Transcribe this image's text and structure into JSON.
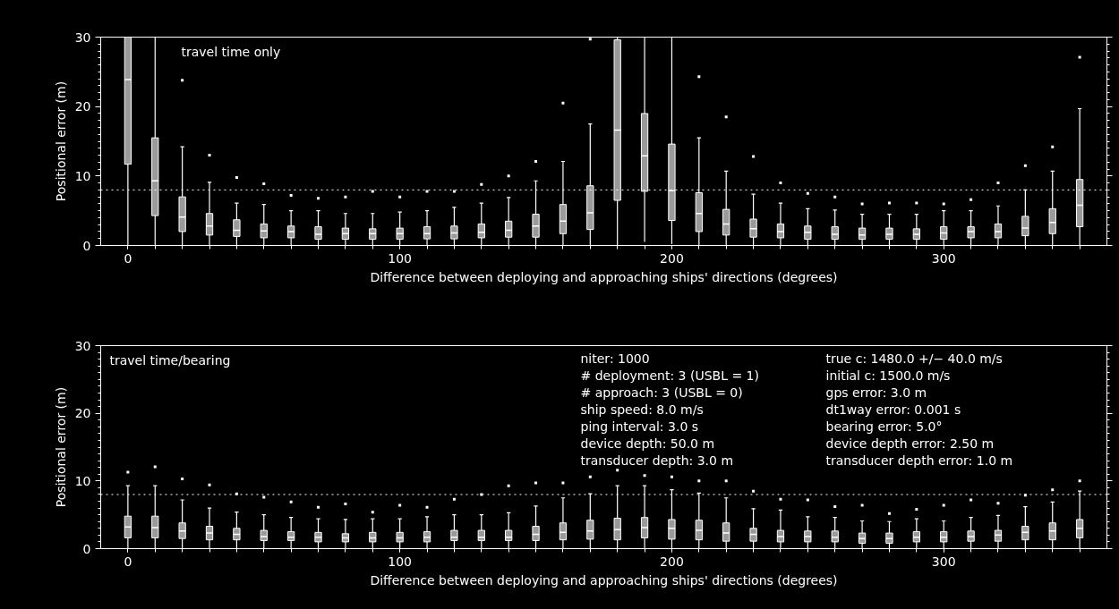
{
  "chart_data": [
    {
      "type": "box",
      "xlabel": "Difference between deploying and approaching ships' directions (degrees)",
      "ylabel": "Positional error (m)",
      "annotations": [
        "travel time only"
      ],
      "x": [
        0,
        10,
        20,
        30,
        40,
        50,
        60,
        70,
        80,
        90,
        100,
        110,
        120,
        130,
        140,
        150,
        160,
        170,
        180,
        190,
        200,
        210,
        220,
        230,
        240,
        250,
        260,
        270,
        280,
        290,
        300,
        310,
        320,
        330,
        340,
        350
      ],
      "xlim": [
        -10,
        360
      ],
      "xticks": [
        0,
        100,
        200,
        300
      ],
      "ylim": [
        0,
        30
      ],
      "yticks": [
        0,
        10,
        20,
        30
      ],
      "ref_lines": [
        {
          "axis": "y",
          "value": 8,
          "color": "#ffffff",
          "line_style": "dotted"
        }
      ],
      "series": [
        {
          "color": "#9a9a9a",
          "boxes": [
            {
              "low": 0,
              "q1": 11.7,
              "median": 23.9,
              "q3": 30,
              "high": 30
            },
            {
              "low": 0,
              "q1": 4.3,
              "median": 9.3,
              "q3": 15.5,
              "high": 30
            },
            {
              "low": 0,
              "q1": 2.0,
              "median": 4.1,
              "q3": 7.0,
              "high": 14.2,
              "outliers": [
                23.8
              ]
            },
            {
              "low": 0,
              "q1": 1.5,
              "median": 2.8,
              "q3": 4.6,
              "high": 9.1,
              "outliers": [
                13
              ]
            },
            {
              "low": 0,
              "q1": 1.3,
              "median": 2.2,
              "q3": 3.7,
              "high": 6.1,
              "outliers": [
                9.8
              ]
            },
            {
              "low": 0,
              "q1": 1.1,
              "median": 2.1,
              "q3": 3.1,
              "high": 5.9,
              "outliers": [
                8.9
              ]
            },
            {
              "low": 0,
              "q1": 1.1,
              "median": 2.0,
              "q3": 2.8,
              "high": 5.0,
              "outliers": [
                7.2
              ]
            },
            {
              "low": 0,
              "q1": 0.9,
              "median": 1.6,
              "q3": 2.7,
              "high": 5.0,
              "outliers": [
                6.8
              ]
            },
            {
              "low": 0,
              "q1": 0.9,
              "median": 1.7,
              "q3": 2.5,
              "high": 4.6,
              "outliers": [
                7.0
              ]
            },
            {
              "low": 0,
              "q1": 0.9,
              "median": 1.7,
              "q3": 2.4,
              "high": 4.6,
              "outliers": [
                7.8
              ]
            },
            {
              "low": 0,
              "q1": 0.9,
              "median": 1.7,
              "q3": 2.5,
              "high": 4.8,
              "outliers": [
                7.0
              ]
            },
            {
              "low": 0,
              "q1": 0.95,
              "median": 1.7,
              "q3": 2.7,
              "high": 5.0,
              "outliers": [
                7.8
              ]
            },
            {
              "low": 0,
              "q1": 0.95,
              "median": 1.8,
              "q3": 2.8,
              "high": 5.5,
              "outliers": [
                7.8
              ]
            },
            {
              "low": 0,
              "q1": 1.1,
              "median": 1.9,
              "q3": 3.1,
              "high": 6.1,
              "outliers": [
                8.8
              ]
            },
            {
              "low": 0,
              "q1": 1.2,
              "median": 2.2,
              "q3": 3.5,
              "high": 6.9,
              "outliers": [
                10
              ]
            },
            {
              "low": 0,
              "q1": 1.2,
              "median": 2.8,
              "q3": 4.5,
              "high": 9.3,
              "outliers": [
                12.1
              ]
            },
            {
              "low": 0,
              "q1": 1.7,
              "median": 3.5,
              "q3": 5.9,
              "high": 12.1,
              "outliers": [
                20.5
              ]
            },
            {
              "low": 0,
              "q1": 2.3,
              "median": 4.7,
              "q3": 8.6,
              "high": 17.5,
              "outliers": [
                29.7
              ]
            },
            {
              "low": 0,
              "q1": 6.5,
              "median": 16.6,
              "q3": 29.6,
              "high": 30
            },
            {
              "low": 0.5,
              "q1": 7.8,
              "median": 12.9,
              "q3": 19,
              "high": 30
            },
            {
              "low": 0.2,
              "q1": 3.6,
              "median": 7.9,
              "q3": 14.6,
              "high": 30
            },
            {
              "low": 0,
              "q1": 2.0,
              "median": 4.6,
              "q3": 7.6,
              "high": 15.5,
              "outliers": [
                24.3
              ]
            },
            {
              "low": 0,
              "q1": 1.5,
              "median": 3.1,
              "q3": 5.2,
              "high": 10.7,
              "outliers": [
                18.5
              ]
            },
            {
              "low": 0,
              "q1": 1.2,
              "median": 2.4,
              "q3": 3.8,
              "high": 7.4,
              "outliers": [
                12.8
              ]
            },
            {
              "low": 0,
              "q1": 1.1,
              "median": 2.0,
              "q3": 3.1,
              "high": 6.1,
              "outliers": [
                9
              ]
            },
            {
              "low": 0,
              "q1": 0.9,
              "median": 1.9,
              "q3": 2.8,
              "high": 5.3,
              "outliers": [
                7.5
              ]
            },
            {
              "low": 0,
              "q1": 0.9,
              "median": 1.6,
              "q3": 2.7,
              "high": 5.1,
              "outliers": [
                7
              ]
            },
            {
              "low": 0,
              "q1": 0.9,
              "median": 1.5,
              "q3": 2.5,
              "high": 4.5,
              "outliers": [
                6
              ]
            },
            {
              "low": 0,
              "q1": 0.9,
              "median": 1.6,
              "q3": 2.5,
              "high": 4.5,
              "outliers": [
                6.1
              ]
            },
            {
              "low": 0,
              "q1": 0.9,
              "median": 1.6,
              "q3": 2.4,
              "high": 4.5,
              "outliers": [
                6.1
              ]
            },
            {
              "low": 0,
              "q1": 0.9,
              "median": 1.8,
              "q3": 2.7,
              "high": 5.0,
              "outliers": [
                6
              ]
            },
            {
              "low": 0,
              "q1": 1.1,
              "median": 2.0,
              "q3": 2.7,
              "high": 5.0,
              "outliers": [
                6.6
              ]
            },
            {
              "low": 0,
              "q1": 1.1,
              "median": 2.0,
              "q3": 3.1,
              "high": 5.7,
              "outliers": [
                9
              ]
            },
            {
              "low": 0,
              "q1": 1.4,
              "median": 2.5,
              "q3": 4.2,
              "high": 8.0,
              "outliers": [
                11.5
              ]
            },
            {
              "low": 0,
              "q1": 1.7,
              "median": 3.3,
              "q3": 5.3,
              "high": 10.7,
              "outliers": [
                14.2
              ]
            },
            {
              "low": 0,
              "q1": 2.7,
              "median": 5.8,
              "q3": 9.5,
              "high": 19.7,
              "outliers": [
                27.1
              ]
            }
          ]
        }
      ]
    },
    {
      "type": "box",
      "xlabel": "Difference between deploying and approaching ships' directions (degrees)",
      "ylabel": "Positional error (m)",
      "annotations": [
        "travel time/bearing",
        "niter: 1000",
        "# deployment: 3 (USBL = 1)",
        "# approach: 3 (USBL = 0)",
        "ship speed: 8.0 m/s",
        "ping interval: 3.0 s",
        "device depth: 50.0 m",
        "transducer depth: 3.0 m",
        "true c: 1480.0 +/− 40.0 m/s",
        "initial c: 1500.0 m/s",
        "gps error: 3.0 m",
        "dt1way error: 0.001 s",
        "bearing error: 5.0°",
        "device depth error: 2.50 m",
        "transducer depth error: 1.0 m"
      ],
      "x": [
        0,
        10,
        20,
        30,
        40,
        50,
        60,
        70,
        80,
        90,
        100,
        110,
        120,
        130,
        140,
        150,
        160,
        170,
        180,
        190,
        200,
        210,
        220,
        230,
        240,
        250,
        260,
        270,
        280,
        290,
        300,
        310,
        320,
        330,
        340,
        350
      ],
      "xlim": [
        -10,
        360
      ],
      "xticks": [
        0,
        100,
        200,
        300
      ],
      "ylim": [
        0,
        30
      ],
      "yticks": [
        0,
        10,
        20,
        30
      ],
      "ref_lines": [
        {
          "axis": "y",
          "value": 8,
          "color": "#ffffff",
          "line_style": "dotted"
        }
      ],
      "series": [
        {
          "color": "#9a9a9a",
          "boxes": [
            {
              "low": 0,
              "q1": 1.6,
              "median": 3.2,
              "q3": 4.8,
              "high": 9.3,
              "outliers": [
                11.3
              ]
            },
            {
              "low": 0,
              "q1": 1.6,
              "median": 3.1,
              "q3": 4.8,
              "high": 9.3,
              "outliers": [
                12.1
              ]
            },
            {
              "low": 0,
              "q1": 1.5,
              "median": 2.6,
              "q3": 3.8,
              "high": 7.2,
              "outliers": [
                10.3
              ]
            },
            {
              "low": 0,
              "q1": 1.3,
              "median": 2.3,
              "q3": 3.3,
              "high": 6.0,
              "outliers": [
                9.4
              ]
            },
            {
              "low": 0,
              "q1": 1.3,
              "median": 2.1,
              "q3": 3.0,
              "high": 5.4,
              "outliers": [
                8.1
              ]
            },
            {
              "low": 0,
              "q1": 1.2,
              "median": 1.8,
              "q3": 2.7,
              "high": 5.0,
              "outliers": [
                7.6
              ]
            },
            {
              "low": 0,
              "q1": 1.2,
              "median": 1.7,
              "q3": 2.5,
              "high": 4.6,
              "outliers": [
                6.9
              ]
            },
            {
              "low": 0,
              "q1": 1.0,
              "median": 1.7,
              "q3": 2.4,
              "high": 4.4,
              "outliers": [
                6.1
              ]
            },
            {
              "low": 0,
              "q1": 1.0,
              "median": 1.6,
              "q3": 2.2,
              "high": 4.3,
              "outliers": [
                6.6
              ]
            },
            {
              "low": 0,
              "q1": 1.0,
              "median": 1.6,
              "q3": 2.4,
              "high": 4.4,
              "outliers": [
                5.4
              ]
            },
            {
              "low": 0,
              "q1": 1.0,
              "median": 1.6,
              "q3": 2.4,
              "high": 4.4,
              "outliers": [
                6.4
              ]
            },
            {
              "low": 0,
              "q1": 1.0,
              "median": 1.7,
              "q3": 2.5,
              "high": 4.7,
              "outliers": [
                6.1
              ]
            },
            {
              "low": 0,
              "q1": 1.2,
              "median": 1.7,
              "q3": 2.7,
              "high": 5.0,
              "outliers": [
                7.3
              ]
            },
            {
              "low": 0,
              "q1": 1.2,
              "median": 1.7,
              "q3": 2.7,
              "high": 5.0,
              "outliers": [
                8.0
              ]
            },
            {
              "low": 0,
              "q1": 1.2,
              "median": 1.7,
              "q3": 2.7,
              "high": 5.3,
              "outliers": [
                9.3
              ]
            },
            {
              "low": 0,
              "q1": 1.2,
              "median": 2.1,
              "q3": 3.3,
              "high": 6.3,
              "outliers": [
                9.7
              ]
            },
            {
              "low": 0,
              "q1": 1.3,
              "median": 2.4,
              "q3": 3.8,
              "high": 7.5,
              "outliers": [
                9.7
              ]
            },
            {
              "low": 0,
              "q1": 1.4,
              "median": 2.6,
              "q3": 4.2,
              "high": 8.1,
              "outliers": [
                10.6
              ]
            },
            {
              "low": 0,
              "q1": 1.3,
              "median": 2.8,
              "q3": 4.5,
              "high": 9.3,
              "outliers": [
                11.6
              ]
            },
            {
              "low": 0,
              "q1": 1.6,
              "median": 3.1,
              "q3": 4.6,
              "high": 9.3,
              "outliers": [
                10.8
              ]
            },
            {
              "low": 0,
              "q1": 1.4,
              "median": 3.0,
              "q3": 4.3,
              "high": 8.7,
              "outliers": [
                10.6
              ]
            },
            {
              "low": 0,
              "q1": 1.3,
              "median": 2.7,
              "q3": 4.2,
              "high": 8.2,
              "outliers": [
                10.0
              ]
            },
            {
              "low": 0,
              "q1": 1.1,
              "median": 2.3,
              "q3": 3.8,
              "high": 7.5,
              "outliers": [
                10.0
              ]
            },
            {
              "low": 0,
              "q1": 1.1,
              "median": 2.1,
              "q3": 3.0,
              "high": 5.9,
              "outliers": [
                8.5
              ]
            },
            {
              "low": 0,
              "q1": 1.0,
              "median": 1.8,
              "q3": 2.7,
              "high": 5.7,
              "outliers": [
                7.3
              ]
            },
            {
              "low": 0,
              "q1": 1.0,
              "median": 1.8,
              "q3": 2.6,
              "high": 4.7,
              "outliers": [
                7.2
              ]
            },
            {
              "low": 0,
              "q1": 1.0,
              "median": 1.7,
              "q3": 2.6,
              "high": 4.6,
              "outliers": [
                6.2
              ]
            },
            {
              "low": 0,
              "q1": 0.8,
              "median": 1.5,
              "q3": 2.3,
              "high": 4.1,
              "outliers": [
                6.4
              ]
            },
            {
              "low": 0,
              "q1": 0.8,
              "median": 1.5,
              "q3": 2.3,
              "high": 4.0,
              "outliers": [
                5.2
              ]
            },
            {
              "low": 0,
              "q1": 1.0,
              "median": 1.7,
              "q3": 2.5,
              "high": 4.4,
              "outliers": [
                5.8
              ]
            },
            {
              "low": 0,
              "q1": 1.0,
              "median": 1.7,
              "q3": 2.5,
              "high": 4.1,
              "outliers": [
                6.4
              ]
            },
            {
              "low": 0,
              "q1": 1.1,
              "median": 1.8,
              "q3": 2.6,
              "high": 4.6,
              "outliers": [
                7.2
              ]
            },
            {
              "low": 0,
              "q1": 1.1,
              "median": 2.0,
              "q3": 2.7,
              "high": 4.9,
              "outliers": [
                6.7
              ]
            },
            {
              "low": 0,
              "q1": 1.3,
              "median": 2.4,
              "q3": 3.3,
              "high": 6.2,
              "outliers": [
                7.9
              ]
            },
            {
              "low": 0,
              "q1": 1.3,
              "median": 2.6,
              "q3": 3.8,
              "high": 6.9,
              "outliers": [
                8.7
              ]
            },
            {
              "low": 0,
              "q1": 1.6,
              "median": 3.0,
              "q3": 4.3,
              "high": 8.5,
              "outliers": [
                10.0
              ]
            }
          ]
        }
      ]
    }
  ]
}
